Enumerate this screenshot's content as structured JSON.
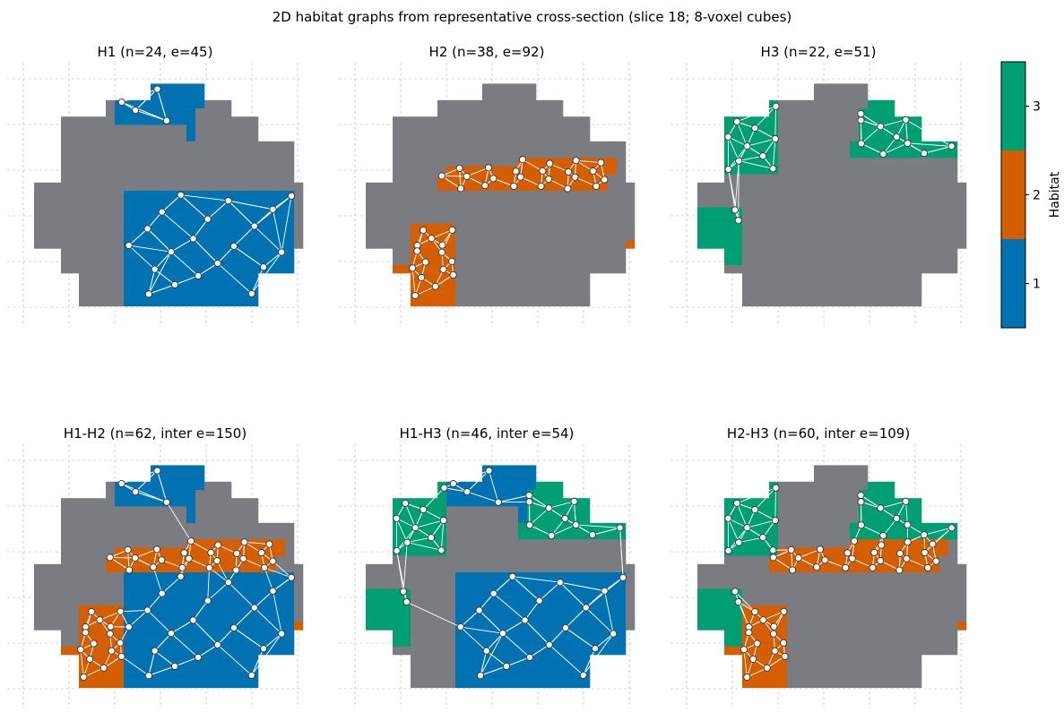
{
  "figure": {
    "title": "2D habitat graphs from representative cross-section (slice 18; 8-voxel cubes)"
  },
  "colors": {
    "habitat_1": "#0072b2",
    "habitat_2": "#d55e00",
    "habitat_3": "#009e73",
    "background_tissue": "#7a7c82",
    "edge": "#ffffff",
    "grid": "#b0b0b0",
    "node_fill": "#ffffff",
    "node_stroke": "#333333"
  },
  "colorbar": {
    "label": "Habitat",
    "ticks": [
      "1",
      "2",
      "3"
    ],
    "colors": [
      "#0072b2",
      "#d55e00",
      "#009e73"
    ]
  },
  "chart_data": [
    {
      "type": "scatter",
      "title": "H1 (n=24, e=45)",
      "habitats": [
        1
      ],
      "nodes": 24,
      "edges": 45
    },
    {
      "type": "scatter",
      "title": "H2 (n=38, e=92)",
      "habitats": [
        2
      ],
      "nodes": 38,
      "edges": 92
    },
    {
      "type": "scatter",
      "title": "H3 (n=22, e=51)",
      "habitats": [
        3
      ],
      "nodes": 22,
      "edges": 51
    },
    {
      "type": "scatter",
      "title": "H1-H2 (n=62, inter e=150)",
      "habitats": [
        1,
        2
      ],
      "nodes": 62,
      "inter_edges": 150
    },
    {
      "type": "scatter",
      "title": "H1-H3 (n=46, inter e=54)",
      "habitats": [
        1,
        3
      ],
      "nodes": 46,
      "inter_edges": 54
    },
    {
      "type": "scatter",
      "title": "H2-H3 (n=60, inter e=109)",
      "habitats": [
        2,
        3
      ],
      "nodes": 60,
      "inter_edges": 109
    }
  ]
}
